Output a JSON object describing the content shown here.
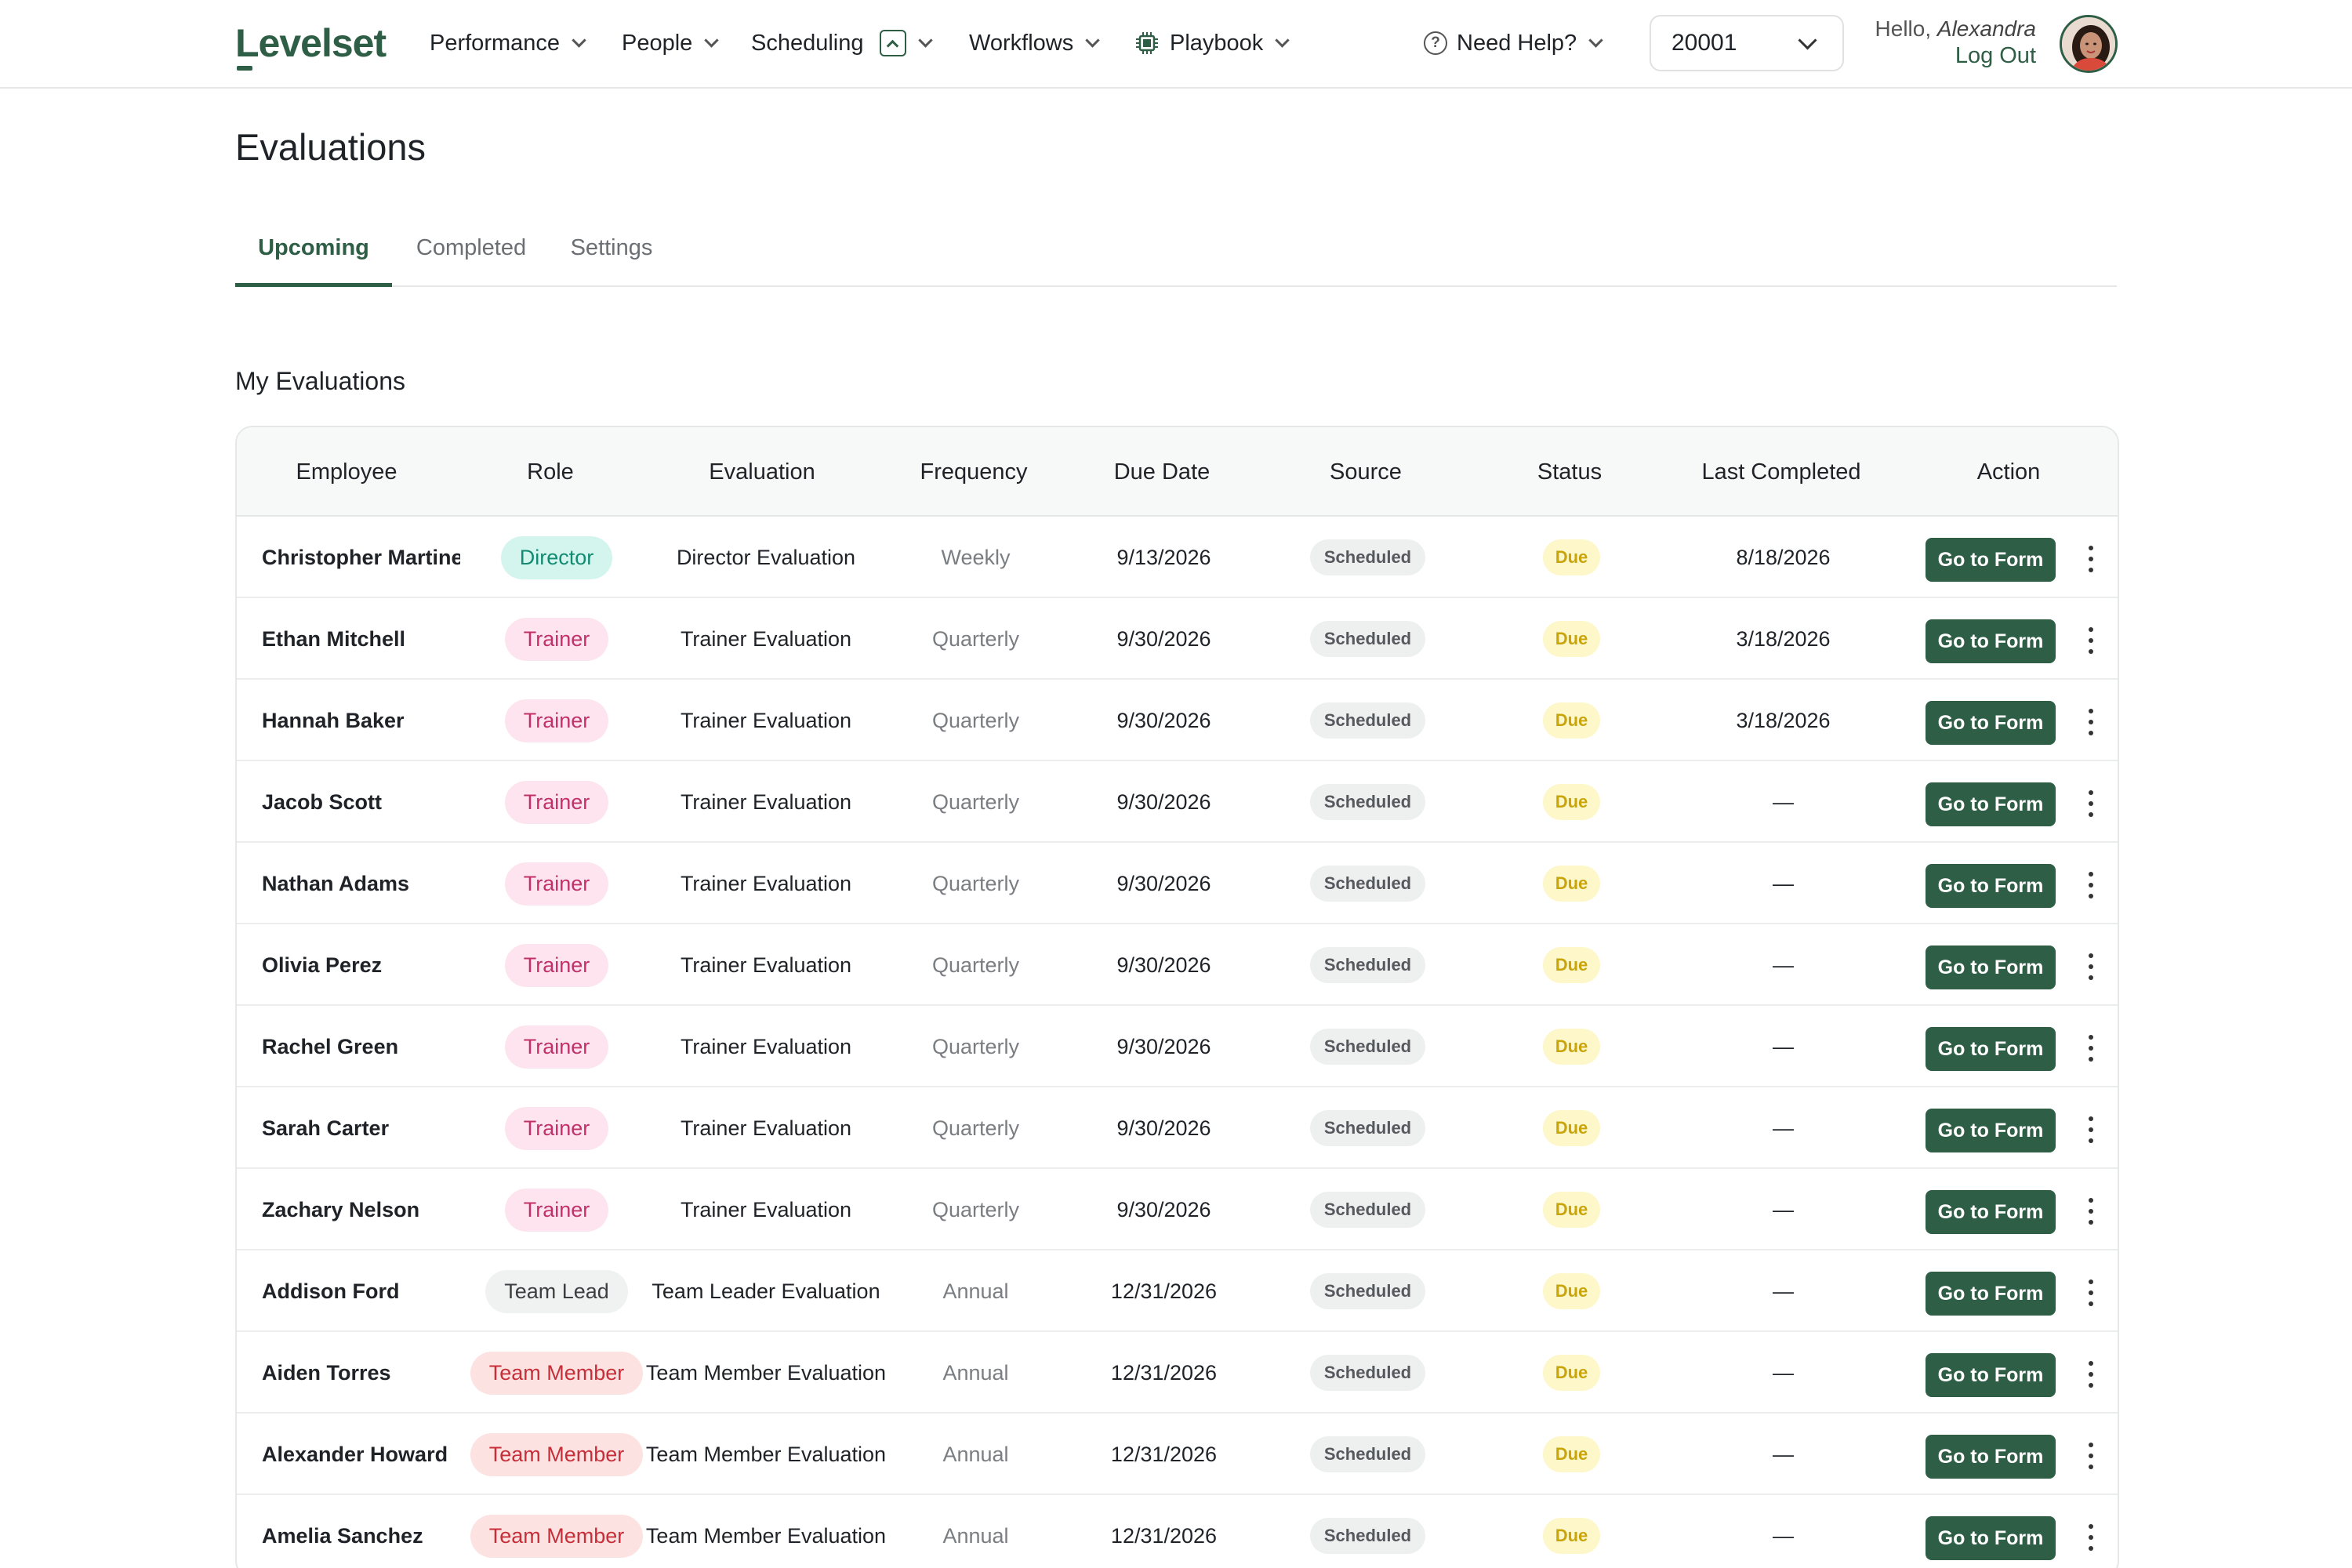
{
  "app": {
    "logo": "Levelset"
  },
  "nav": {
    "performance": "Performance",
    "people": "People",
    "scheduling": "Scheduling",
    "workflows": "Workflows",
    "playbook": "Playbook",
    "help": "Need Help?",
    "store_number": "20001",
    "greeting_prefix": "Hello,",
    "user_name": "Alexandra",
    "logout": "Log Out"
  },
  "page": {
    "title": "Evaluations",
    "tabs": [
      "Upcoming",
      "Completed",
      "Settings"
    ],
    "section_title": "My Evaluations"
  },
  "table": {
    "headers": [
      "Employee",
      "Role",
      "Evaluation",
      "Frequency",
      "Due Date",
      "Source",
      "Status",
      "Last Completed",
      "Action"
    ],
    "action_label": "Go to Form",
    "rows": [
      {
        "employee": "Christopher Martinez",
        "role": "Director",
        "role_type": "director",
        "evaluation": "Director Evaluation",
        "frequency": "Weekly",
        "due": "9/13/2026",
        "source": "Scheduled",
        "status": "Due",
        "last": "8/18/2026"
      },
      {
        "employee": "Ethan Mitchell",
        "role": "Trainer",
        "role_type": "trainer",
        "evaluation": "Trainer Evaluation",
        "frequency": "Quarterly",
        "due": "9/30/2026",
        "source": "Scheduled",
        "status": "Due",
        "last": "3/18/2026"
      },
      {
        "employee": "Hannah Baker",
        "role": "Trainer",
        "role_type": "trainer",
        "evaluation": "Trainer Evaluation",
        "frequency": "Quarterly",
        "due": "9/30/2026",
        "source": "Scheduled",
        "status": "Due",
        "last": "3/18/2026"
      },
      {
        "employee": "Jacob Scott",
        "role": "Trainer",
        "role_type": "trainer",
        "evaluation": "Trainer Evaluation",
        "frequency": "Quarterly",
        "due": "9/30/2026",
        "source": "Scheduled",
        "status": "Due",
        "last": "—"
      },
      {
        "employee": "Nathan Adams",
        "role": "Trainer",
        "role_type": "trainer",
        "evaluation": "Trainer Evaluation",
        "frequency": "Quarterly",
        "due": "9/30/2026",
        "source": "Scheduled",
        "status": "Due",
        "last": "—"
      },
      {
        "employee": "Olivia Perez",
        "role": "Trainer",
        "role_type": "trainer",
        "evaluation": "Trainer Evaluation",
        "frequency": "Quarterly",
        "due": "9/30/2026",
        "source": "Scheduled",
        "status": "Due",
        "last": "—"
      },
      {
        "employee": "Rachel Green",
        "role": "Trainer",
        "role_type": "trainer",
        "evaluation": "Trainer Evaluation",
        "frequency": "Quarterly",
        "due": "9/30/2026",
        "source": "Scheduled",
        "status": "Due",
        "last": "—"
      },
      {
        "employee": "Sarah Carter",
        "role": "Trainer",
        "role_type": "trainer",
        "evaluation": "Trainer Evaluation",
        "frequency": "Quarterly",
        "due": "9/30/2026",
        "source": "Scheduled",
        "status": "Due",
        "last": "—"
      },
      {
        "employee": "Zachary Nelson",
        "role": "Trainer",
        "role_type": "trainer",
        "evaluation": "Trainer Evaluation",
        "frequency": "Quarterly",
        "due": "9/30/2026",
        "source": "Scheduled",
        "status": "Due",
        "last": "—"
      },
      {
        "employee": "Addison Ford",
        "role": "Team Lead",
        "role_type": "lead",
        "evaluation": "Team Leader Evaluation",
        "frequency": "Annual",
        "due": "12/31/2026",
        "source": "Scheduled",
        "status": "Due",
        "last": "—"
      },
      {
        "employee": "Aiden Torres",
        "role": "Team Member",
        "role_type": "member",
        "evaluation": "Team Member Evaluation",
        "frequency": "Annual",
        "due": "12/31/2026",
        "source": "Scheduled",
        "status": "Due",
        "last": "—"
      },
      {
        "employee": "Alexander Howard",
        "role": "Team Member",
        "role_type": "member",
        "evaluation": "Team Member Evaluation",
        "frequency": "Annual",
        "due": "12/31/2026",
        "source": "Scheduled",
        "status": "Due",
        "last": "—"
      },
      {
        "employee": "Amelia Sanchez",
        "role": "Team Member",
        "role_type": "member",
        "evaluation": "Team Member Evaluation",
        "frequency": "Annual",
        "due": "12/31/2026",
        "source": "Scheduled",
        "status": "Due",
        "last": "—"
      }
    ]
  },
  "colors": {
    "brand": "#2e5e45",
    "director": "#138a72",
    "trainer": "#c2306a",
    "team_member": "#c62f3a",
    "status_due": "#c9a50b"
  },
  "icons": [
    "chevron-down-icon",
    "chevron-up-icon",
    "chip-icon",
    "help-icon",
    "kebab-menu-icon"
  ]
}
